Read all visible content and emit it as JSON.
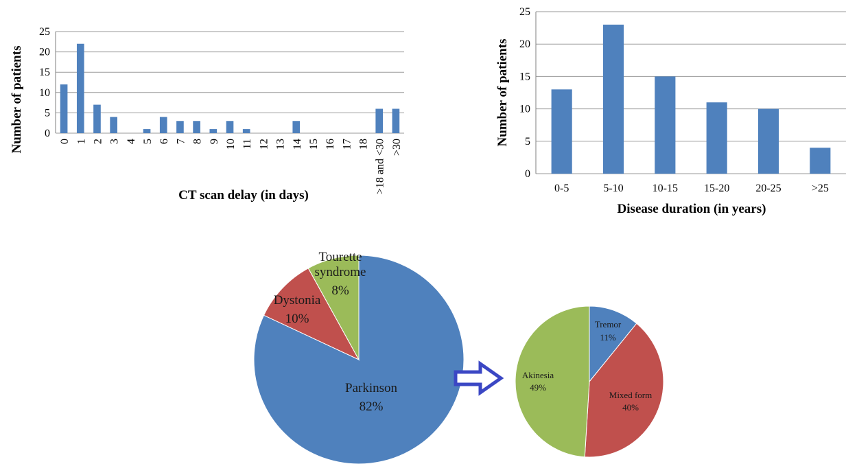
{
  "chart_data": [
    {
      "type": "bar",
      "categories": [
        "0",
        "1",
        "2",
        "3",
        "4",
        "5",
        "6",
        "7",
        "8",
        "9",
        "10",
        "11",
        "12",
        "13",
        "14",
        "15",
        "16",
        "17",
        "18",
        ">18 and <30",
        ">30"
      ],
      "values": [
        12,
        22,
        7,
        4,
        0,
        1,
        4,
        3,
        3,
        1,
        3,
        1,
        0,
        0,
        3,
        0,
        0,
        0,
        0,
        6,
        6
      ],
      "title": "",
      "xlabel": "CT scan delay (in days)",
      "ylabel": "Number of patients",
      "ylim": [
        0,
        25
      ],
      "yticks": [
        0,
        5,
        10,
        15,
        20,
        25
      ],
      "grid": true,
      "color": "#4f81bd"
    },
    {
      "type": "bar",
      "categories": [
        "0-5",
        "5-10",
        "10-15",
        "15-20",
        "20-25",
        ">25"
      ],
      "values": [
        13,
        23,
        15,
        11,
        10,
        4
      ],
      "title": "",
      "xlabel": "Disease duration (in years)",
      "ylabel": "Number of patients",
      "ylim": [
        0,
        25
      ],
      "yticks": [
        0,
        5,
        10,
        15,
        20,
        25
      ],
      "grid": true,
      "color": "#4f81bd"
    },
    {
      "type": "pie",
      "slices": [
        {
          "name": "Parkinson",
          "value": 82,
          "label": "82%",
          "color": "#4f81bd"
        },
        {
          "name": "Dystonia",
          "value": 10,
          "label": "10%",
          "color": "#c0504d"
        },
        {
          "name": "Tourette syndrome",
          "name_lines": [
            "Tourette",
            "syndrome"
          ],
          "value": 8,
          "label": "8%",
          "color": "#9bbb59"
        }
      ]
    },
    {
      "type": "pie",
      "slices": [
        {
          "name": "Tremor",
          "value": 11,
          "label": "11%",
          "color": "#4f81bd"
        },
        {
          "name": "Mixed form",
          "value": 40,
          "label": "40%",
          "color": "#c0504d"
        },
        {
          "name": "Akinesia",
          "value": 49,
          "label": "49%",
          "color": "#9bbb59"
        }
      ]
    }
  ],
  "connector": {
    "color": "#3b47c4",
    "icon": "right-arrow-icon"
  }
}
